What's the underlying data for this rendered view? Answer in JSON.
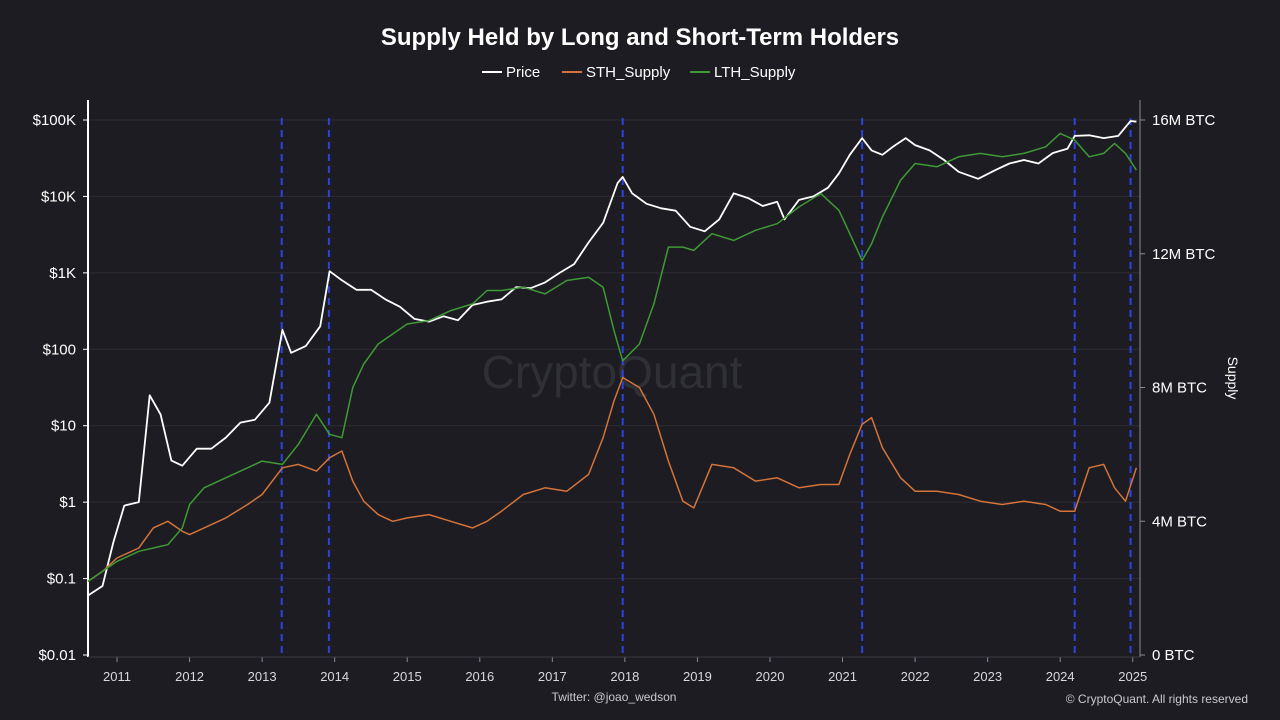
{
  "chart_data": {
    "type": "line",
    "title": "Supply Held by Long and Short-Term Holders",
    "legend": {
      "placement": "top-center"
    },
    "watermark": "CryptoQuant",
    "footer": {
      "credit": "Twitter: @joao_wedson",
      "copyright": "© CryptoQuant. All rights reserved"
    },
    "x_axis": {
      "ticks": [
        "2011",
        "2012",
        "2013",
        "2014",
        "2015",
        "2016",
        "2017",
        "2018",
        "2019",
        "2020",
        "2021",
        "2022",
        "2023",
        "2024",
        "2025"
      ],
      "range": [
        2010.6,
        2025.1
      ]
    },
    "y_axis_left": {
      "scale": "log",
      "range": [
        0.01,
        200000
      ],
      "ticks": [
        {
          "value": 0.01,
          "label": "$0.01"
        },
        {
          "value": 0.1,
          "label": "$0.1"
        },
        {
          "value": 1,
          "label": "$1"
        },
        {
          "value": 10,
          "label": "$10"
        },
        {
          "value": 100,
          "label": "$100"
        },
        {
          "value": 1000,
          "label": "$1K"
        },
        {
          "value": 10000,
          "label": "$10K"
        },
        {
          "value": 100000,
          "label": "$100K"
        }
      ]
    },
    "y_axis_right": {
      "label": "Supply",
      "scale": "linear",
      "range": [
        0,
        16000000
      ],
      "ticks": [
        {
          "value": 0,
          "label": "0 BTC"
        },
        {
          "value": 4000000,
          "label": "4M BTC"
        },
        {
          "value": 8000000,
          "label": "8M BTC"
        },
        {
          "value": 12000000,
          "label": "12M BTC"
        },
        {
          "value": 16000000,
          "label": "16M BTC"
        }
      ]
    },
    "grid": true,
    "vertical_markers": [
      2013.27,
      2013.92,
      2017.97,
      2021.27,
      2024.2,
      2024.97
    ],
    "series": [
      {
        "name": "Price",
        "axis": "left",
        "color": "#ffffff",
        "x": [
          2010.6,
          2010.8,
          2010.95,
          2011.1,
          2011.3,
          2011.45,
          2011.6,
          2011.75,
          2011.9,
          2012.1,
          2012.3,
          2012.5,
          2012.7,
          2012.9,
          2013.1,
          2013.28,
          2013.4,
          2013.6,
          2013.8,
          2013.93,
          2014.1,
          2014.3,
          2014.5,
          2014.7,
          2014.9,
          2015.1,
          2015.3,
          2015.5,
          2015.7,
          2015.9,
          2016.1,
          2016.3,
          2016.5,
          2016.7,
          2016.9,
          2017.1,
          2017.3,
          2017.5,
          2017.7,
          2017.9,
          2017.97,
          2018.1,
          2018.3,
          2018.5,
          2018.7,
          2018.9,
          2019.1,
          2019.3,
          2019.5,
          2019.7,
          2019.9,
          2020.1,
          2020.2,
          2020.4,
          2020.6,
          2020.8,
          2020.95,
          2021.1,
          2021.27,
          2021.4,
          2021.55,
          2021.7,
          2021.87,
          2022.0,
          2022.2,
          2022.4,
          2022.6,
          2022.87,
          2023.1,
          2023.3,
          2023.5,
          2023.7,
          2023.9,
          2024.1,
          2024.2,
          2024.4,
          2024.6,
          2024.8,
          2024.97,
          2025.05
        ],
        "y": [
          0.06,
          0.08,
          0.3,
          0.9,
          1.0,
          25,
          14,
          3.5,
          3,
          5,
          5,
          7,
          11,
          12,
          20,
          180,
          90,
          110,
          200,
          1050,
          800,
          600,
          600,
          450,
          360,
          250,
          230,
          270,
          240,
          380,
          420,
          450,
          650,
          630,
          750,
          1000,
          1300,
          2500,
          4500,
          15000,
          18000,
          11000,
          8000,
          7000,
          6500,
          4000,
          3500,
          5000,
          11000,
          9500,
          7500,
          8500,
          5000,
          9000,
          10000,
          13000,
          20000,
          35000,
          58000,
          40000,
          35000,
          45000,
          58000,
          47000,
          40000,
          30000,
          21000,
          17000,
          22000,
          27000,
          30000,
          27000,
          37000,
          42000,
          62000,
          63000,
          58000,
          62000,
          97000,
          95000
        ]
      },
      {
        "name": "STH_Supply",
        "axis": "right",
        "color": "#d4733a",
        "x": [
          2010.6,
          2010.8,
          2011.0,
          2011.3,
          2011.5,
          2011.7,
          2011.9,
          2012.0,
          2012.2,
          2012.5,
          2012.8,
          2013.0,
          2013.28,
          2013.5,
          2013.75,
          2013.93,
          2014.1,
          2014.25,
          2014.4,
          2014.6,
          2014.8,
          2015.0,
          2015.3,
          2015.6,
          2015.9,
          2016.1,
          2016.3,
          2016.6,
          2016.9,
          2017.2,
          2017.5,
          2017.7,
          2017.85,
          2017.97,
          2018.2,
          2018.4,
          2018.6,
          2018.8,
          2018.95,
          2019.2,
          2019.5,
          2019.8,
          2020.1,
          2020.4,
          2020.7,
          2020.95,
          2021.1,
          2021.27,
          2021.4,
          2021.55,
          2021.8,
          2022.0,
          2022.3,
          2022.6,
          2022.9,
          2023.2,
          2023.5,
          2023.8,
          2024.0,
          2024.2,
          2024.4,
          2024.6,
          2024.75,
          2024.9,
          2025.05
        ],
        "y": [
          2.2,
          2.5,
          2.9,
          3.2,
          3.8,
          4.0,
          3.7,
          3.6,
          3.8,
          4.1,
          4.5,
          4.8,
          5.6,
          5.7,
          5.5,
          5.9,
          6.1,
          5.2,
          4.6,
          4.2,
          4.0,
          4.1,
          4.2,
          4.0,
          3.8,
          4.0,
          4.3,
          4.8,
          5.0,
          4.9,
          5.4,
          6.5,
          7.6,
          8.3,
          8.0,
          7.2,
          5.8,
          4.6,
          4.4,
          5.7,
          5.6,
          5.2,
          5.3,
          5.0,
          5.1,
          5.1,
          6.0,
          6.9,
          7.1,
          6.2,
          5.3,
          4.9,
          4.9,
          4.8,
          4.6,
          4.5,
          4.6,
          4.5,
          4.3,
          4.3,
          5.6,
          5.7,
          5.0,
          4.6,
          5.6
        ]
      },
      {
        "name": "LTH_Supply",
        "axis": "right",
        "color": "#3e9a34",
        "x": [
          2010.6,
          2010.8,
          2011.0,
          2011.3,
          2011.5,
          2011.7,
          2011.9,
          2012.0,
          2012.2,
          2012.5,
          2012.8,
          2013.0,
          2013.28,
          2013.5,
          2013.75,
          2013.93,
          2014.1,
          2014.25,
          2014.4,
          2014.6,
          2014.8,
          2015.0,
          2015.3,
          2015.6,
          2015.9,
          2016.1,
          2016.3,
          2016.6,
          2016.9,
          2017.2,
          2017.5,
          2017.7,
          2017.85,
          2017.97,
          2018.2,
          2018.4,
          2018.6,
          2018.8,
          2018.95,
          2019.2,
          2019.5,
          2019.8,
          2020.1,
          2020.4,
          2020.7,
          2020.95,
          2021.1,
          2021.27,
          2021.4,
          2021.55,
          2021.8,
          2022.0,
          2022.3,
          2022.6,
          2022.9,
          2023.2,
          2023.5,
          2023.8,
          2024.0,
          2024.2,
          2024.4,
          2024.6,
          2024.75,
          2024.9,
          2025.05
        ],
        "y": [
          2.2,
          2.5,
          2.8,
          3.1,
          3.2,
          3.3,
          3.8,
          4.5,
          5.0,
          5.3,
          5.6,
          5.8,
          5.7,
          6.3,
          7.2,
          6.6,
          6.5,
          8.0,
          8.7,
          9.3,
          9.6,
          9.9,
          10.0,
          10.3,
          10.5,
          10.9,
          10.9,
          11.0,
          10.8,
          11.2,
          11.3,
          11.0,
          9.7,
          8.8,
          9.3,
          10.5,
          12.2,
          12.2,
          12.1,
          12.6,
          12.4,
          12.7,
          12.9,
          13.4,
          13.8,
          13.3,
          12.6,
          11.8,
          12.3,
          13.1,
          14.2,
          14.7,
          14.6,
          14.9,
          15.0,
          14.9,
          15.0,
          15.2,
          15.6,
          15.4,
          14.9,
          15.0,
          15.3,
          15.0,
          14.5
        ]
      }
    ]
  }
}
